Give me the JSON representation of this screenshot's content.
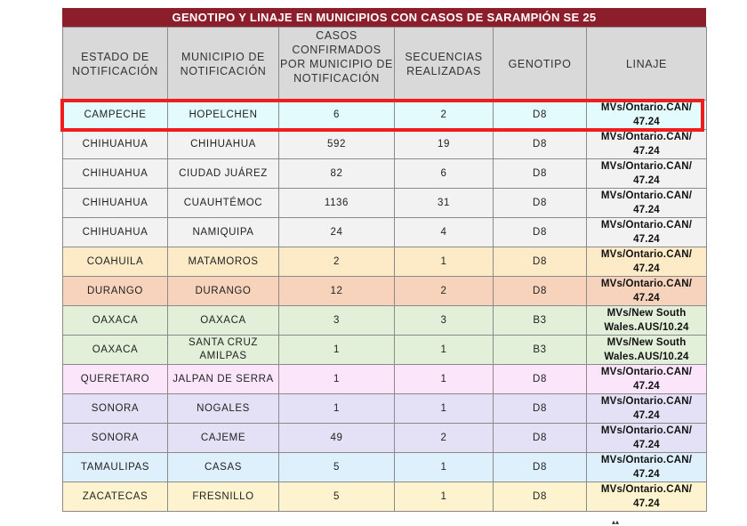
{
  "title": "GENOTIPO Y LINAJE EN  MUNICIPIOS CON CASOS DE SARAMPIÓN SE 25",
  "headers": {
    "estado": "ESTADO DE NOTIFICACIÓN",
    "municipio": "MUNICIPIO DE NOTIFICACIÓN",
    "casos": "CASOS CONFIRMADOS POR MUNICIPIO DE NOTIFICACIÓN",
    "secuencias": "SECUENCIAS REALIZADAS",
    "genotipo": "GENOTIPO",
    "linaje": "LINAJE"
  },
  "highlight_color": "#f11d1d",
  "rows": [
    {
      "estado": "CAMPECHE",
      "municipio": "HOPELCHEN",
      "casos": "6",
      "secuencias": "2",
      "genotipo": "D8",
      "linaje": "MVs/Ontario.CAN/ 47.24",
      "color": "#e3fbfc"
    },
    {
      "estado": "CHIHUAHUA",
      "municipio": "CHIHUAHUA",
      "casos": "592",
      "secuencias": "19",
      "genotipo": "D8",
      "linaje": "MVs/Ontario.CAN/ 47.24",
      "color": "#f2f2f2"
    },
    {
      "estado": "CHIHUAHUA",
      "municipio": "CIUDAD JUÁREZ",
      "casos": "82",
      "secuencias": "6",
      "genotipo": "D8",
      "linaje": "MVs/Ontario.CAN/ 47.24",
      "color": "#f2f2f2"
    },
    {
      "estado": "CHIHUAHUA",
      "municipio": "CUAUHTÉMOC",
      "casos": "1136",
      "secuencias": "31",
      "genotipo": "D8",
      "linaje": "MVs/Ontario.CAN/ 47.24",
      "color": "#f2f2f2"
    },
    {
      "estado": "CHIHUAHUA",
      "municipio": "NAMIQUIPA",
      "casos": "24",
      "secuencias": "4",
      "genotipo": "D8",
      "linaje": "MVs/Ontario.CAN/ 47.24",
      "color": "#f2f2f2"
    },
    {
      "estado": "COAHUILA",
      "municipio": "MATAMOROS",
      "casos": "2",
      "secuencias": "1",
      "genotipo": "D8",
      "linaje": "MVs/Ontario.CAN/ 47.24",
      "color": "#fdebc8"
    },
    {
      "estado": "DURANGO",
      "municipio": "DURANGO",
      "casos": "12",
      "secuencias": "2",
      "genotipo": "D8",
      "linaje": "MVs/Ontario.CAN/ 47.24",
      "color": "#f8d3bc"
    },
    {
      "estado": "OAXACA",
      "municipio": "OAXACA",
      "casos": "3",
      "secuencias": "3",
      "genotipo": "B3",
      "linaje": "MVs/New South Wales.AUS/10.24",
      "color": "#e2efd9"
    },
    {
      "estado": "OAXACA",
      "municipio": "SANTA CRUZ AMILPAS",
      "casos": "1",
      "secuencias": "1",
      "genotipo": "B3",
      "linaje": "MVs/New South Wales.AUS/10.24",
      "color": "#e2efd9"
    },
    {
      "estado": "QUERETARO",
      "municipio": "JALPAN DE SERRA",
      "casos": "1",
      "secuencias": "1",
      "genotipo": "D8",
      "linaje": "MVs/Ontario.CAN/ 47.24",
      "color": "#fbe5fb"
    },
    {
      "estado": "SONORA",
      "municipio": "NOGALES",
      "casos": "1",
      "secuencias": "1",
      "genotipo": "D8",
      "linaje": "MVs/Ontario.CAN/ 47.24",
      "color": "#e4e1f6"
    },
    {
      "estado": "SONORA",
      "municipio": "CAJEME",
      "casos": "49",
      "secuencias": "2",
      "genotipo": "D8",
      "linaje": "MVs/Ontario.CAN/ 47.24",
      "color": "#e4e1f6"
    },
    {
      "estado": "TAMAULIPAS",
      "municipio": "CASAS",
      "casos": "5",
      "secuencias": "1",
      "genotipo": "D8",
      "linaje": "MVs/Ontario.CAN/ 47.24",
      "color": "#def0fb"
    },
    {
      "estado": "ZACATECAS",
      "municipio": "FRESNILLO",
      "casos": "5",
      "secuencias": "1",
      "genotipo": "D8",
      "linaje": "MVs/Ontario.CAN/ 47.24",
      "color": "#fdf4cf"
    }
  ]
}
